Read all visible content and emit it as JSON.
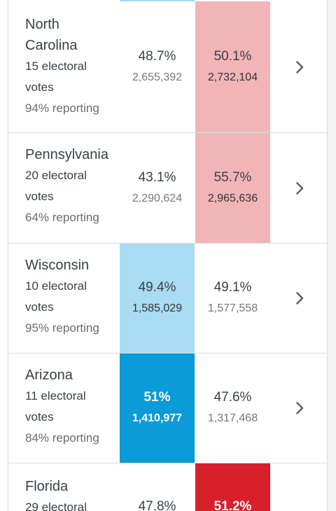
{
  "races": [
    {
      "state": "North Carolina",
      "state_line1": "North",
      "state_line2": "Carolina",
      "electoral_line1": "15 electoral",
      "electoral_line2": "votes",
      "reporting": "94% reporting",
      "dem": {
        "pct": "48.7%",
        "votes": "2,655,392",
        "shade": "none"
      },
      "rep": {
        "pct": "50.1%",
        "votes": "2,732,104",
        "shade": "light-red"
      }
    },
    {
      "state": "Pennsylvania",
      "electoral_line1": "20 electoral",
      "electoral_line2": "votes",
      "reporting": "64% reporting",
      "dem": {
        "pct": "43.1%",
        "votes": "2,290,624",
        "shade": "none"
      },
      "rep": {
        "pct": "55.7%",
        "votes": "2,965,636",
        "shade": "light-red"
      }
    },
    {
      "state": "Wisconsin",
      "electoral_line1": "10 electoral",
      "electoral_line2": "votes",
      "reporting": "95% reporting",
      "dem": {
        "pct": "49.4%",
        "votes": "1,585,029",
        "shade": "light-blue"
      },
      "rep": {
        "pct": "49.1%",
        "votes": "1,577,558",
        "shade": "none"
      }
    },
    {
      "state": "Arizona",
      "electoral_line1": "11 electoral",
      "electoral_line2": "votes",
      "reporting": "84% reporting",
      "dem": {
        "pct": "51%",
        "votes": "1,410,977",
        "shade": "blue"
      },
      "rep": {
        "pct": "47.6%",
        "votes": "1,317,468",
        "shade": "none"
      }
    },
    {
      "state": "Florida",
      "electoral_line1": "29 electoral",
      "dem": {
        "pct": "47.8%",
        "shade": "none"
      },
      "rep": {
        "pct": "51.2%",
        "shade": "red"
      }
    }
  ],
  "colors": {
    "light_red": "#f1b5b8",
    "light_blue": "#a9dbf2",
    "dem_win": "#0a9bd8",
    "rep_win": "#d7202a"
  },
  "icons": {
    "row_action": "chevron-right-icon"
  }
}
